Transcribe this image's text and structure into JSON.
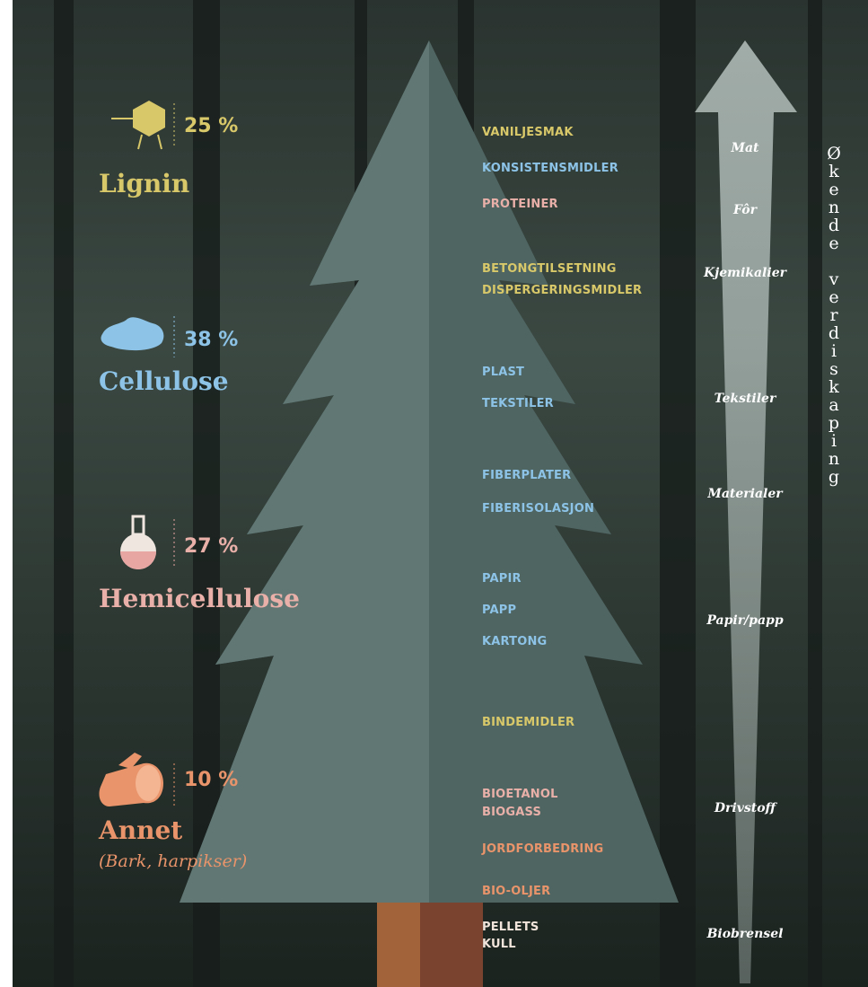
{
  "composition": [
    {
      "percent": "25 %",
      "name": "Lignin"
    },
    {
      "percent": "38 %",
      "name": "Cellulose"
    },
    {
      "percent": "27 %",
      "name": "Hemicellulose"
    },
    {
      "percent": "10 %",
      "name": "Annet",
      "note": "(Bark, harpikser)"
    }
  ],
  "products": [
    "VANILJESMAK",
    "KONSISTENSMIDLER",
    "PROTEINER",
    "BETONGTILSETNING",
    "DISPERGERINGSMIDLER",
    "PLAST",
    "TEKSTILER",
    "FIBERPLATER",
    "FIBERISOLASJON",
    "PAPIR",
    "PAPP",
    "KARTONG",
    "BINDEMIDLER",
    "BIOETANOL",
    "BIOGASS",
    "JORDFORBEDRING",
    "BIO-OLJER",
    "PELLETS",
    "KULL"
  ],
  "uses": [
    "Mat",
    "Fôr",
    "Kjemikalier",
    "Tekstiler",
    "Materialer",
    "Papir/papp",
    "Drivstoff",
    "Biobrensel"
  ],
  "arrow_label": "Økende verdiskaping"
}
